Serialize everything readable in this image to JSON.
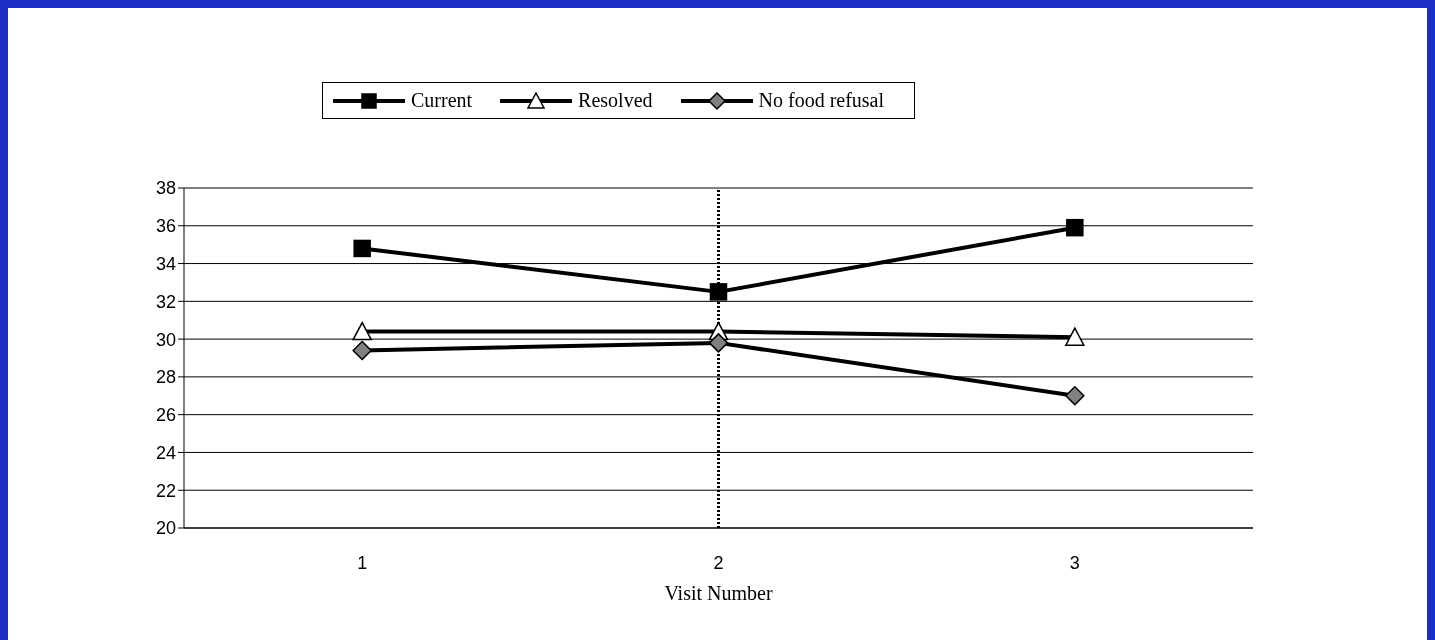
{
  "chart_data": {
    "type": "line",
    "xlabel": "Visit Number",
    "categories": [
      "1",
      "2",
      "3"
    ],
    "series": [
      {
        "name": "Current",
        "color": "#000000",
        "marker": "square",
        "values": [
          34.8,
          32.5,
          35.9
        ]
      },
      {
        "name": "Resolved",
        "color": "#ffffff",
        "marker": "triangle",
        "values": [
          30.4,
          30.4,
          30.1
        ]
      },
      {
        "name": "No food refusal",
        "color": "#808080",
        "marker": "diamond",
        "values": [
          29.4,
          29.8,
          27.0
        ]
      }
    ],
    "ylim": [
      20,
      38
    ],
    "yticks": [
      20,
      22,
      24,
      26,
      28,
      30,
      32,
      34,
      36,
      38
    ],
    "grid": "y",
    "legend": "top",
    "ref_lines": [
      {
        "axis": "x",
        "value": "2",
        "line_style": "dotted",
        "color": "#000000"
      }
    ]
  }
}
